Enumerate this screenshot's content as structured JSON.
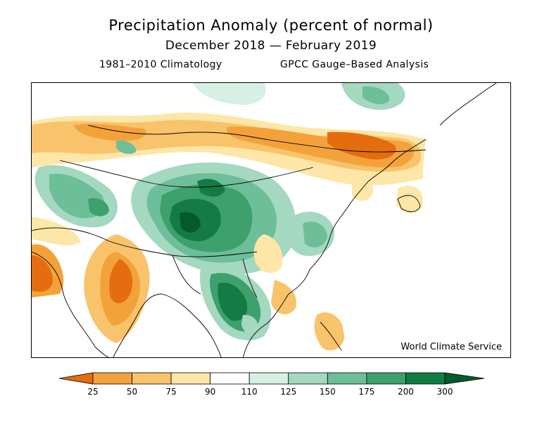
{
  "title": "Precipitation Anomaly (percent of normal)",
  "period": "December 2018 — February 2019",
  "climatology": "1981–2010 Climatology",
  "analysis": "GPCC Gauge–Based Analysis",
  "credit": "World Climate Service",
  "legend": {
    "ticks": [
      "25",
      "50",
      "75",
      "90",
      "110",
      "125",
      "150",
      "175",
      "200",
      "300"
    ],
    "colors": [
      "#e46d0e",
      "#f3a23b",
      "#f8c36a",
      "#fde6a8",
      "#ffffff",
      "#d6f0e4",
      "#a4d8c0",
      "#6cbf98",
      "#3ea06c",
      "#137b43",
      "#045a2b"
    ]
  }
}
